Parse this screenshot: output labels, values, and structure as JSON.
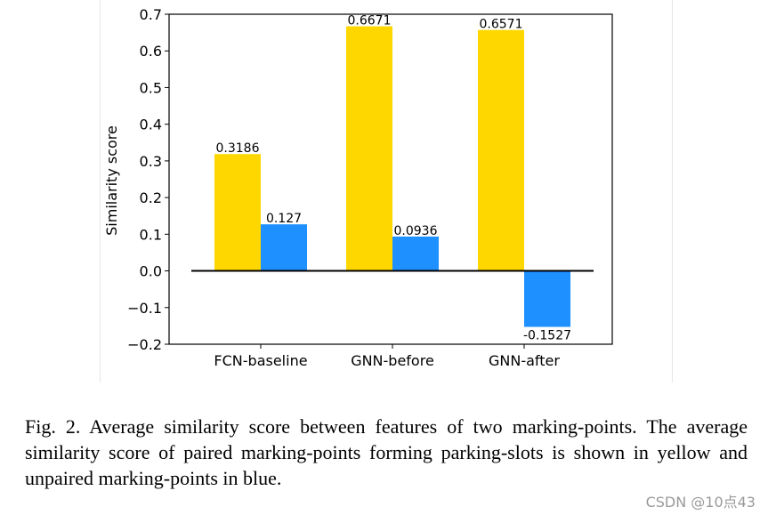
{
  "chart_data": {
    "type": "bar",
    "title": "",
    "xlabel": "",
    "ylabel": "Similarity score",
    "categories": [
      "FCN-baseline",
      "GNN-before",
      "GNN-after"
    ],
    "series": [
      {
        "name": "paired",
        "color": "#FFD700",
        "values": [
          0.3186,
          0.6671,
          0.6571
        ],
        "labels": [
          "0.3186",
          "0.6671",
          "0.6571"
        ]
      },
      {
        "name": "unpaired",
        "color": "#1E90FF",
        "values": [
          0.127,
          0.0936,
          -0.1527
        ],
        "labels": [
          "0.127",
          "0.0936",
          "-0.1527"
        ]
      }
    ],
    "ylim": [
      -0.2,
      0.7
    ],
    "yticks": [
      -0.2,
      -0.1,
      0.0,
      0.1,
      0.2,
      0.3,
      0.4,
      0.5,
      0.6,
      0.7
    ],
    "ytick_labels": [
      "−0.2",
      "−0.1",
      "0.0",
      "0.1",
      "0.2",
      "0.3",
      "0.4",
      "0.5",
      "0.6",
      "0.7"
    ],
    "zero_line": true,
    "grid": false
  },
  "caption": {
    "text": "Fig. 2.  Average similarity score between features of two marking-points. The average similarity score of paired marking-points forming parking-slots is shown in yellow and unpaired marking-points in blue."
  },
  "watermark": "CSDN @10点43"
}
